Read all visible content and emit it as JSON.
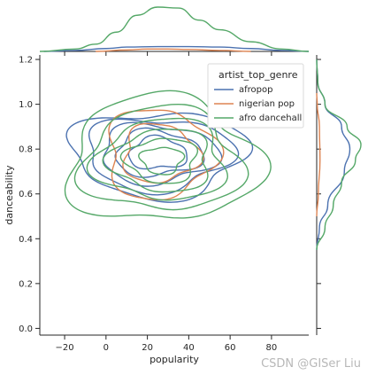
{
  "chart_data": {
    "type": "kde-joint",
    "xlabel": "popularity",
    "ylabel": "danceability",
    "xlim": [
      -32,
      98
    ],
    "ylim": [
      -0.03,
      1.22
    ],
    "xticks": [
      -20,
      0,
      20,
      40,
      60,
      80
    ],
    "yticks": [
      0.0,
      0.2,
      0.4,
      0.6,
      0.8,
      1.0,
      1.2
    ],
    "legend": {
      "title": "artist_top_genre",
      "position": "top-right"
    },
    "series": [
      {
        "name": "afropop",
        "color": "#4c72b0",
        "center": [
          25,
          0.78
        ],
        "levels": [
          {
            "rx": 42,
            "ry": 0.19
          },
          {
            "rx": 35,
            "ry": 0.16
          },
          {
            "rx": 28,
            "ry": 0.13
          },
          {
            "rx": 21,
            "ry": 0.1
          },
          {
            "rx": 14,
            "ry": 0.07
          }
        ],
        "marginal_x": [
          [
            -30,
            0
          ],
          [
            -15,
            0.02
          ],
          [
            0,
            0.06
          ],
          [
            10,
            0.09
          ],
          [
            25,
            0.1
          ],
          [
            40,
            0.1
          ],
          [
            55,
            0.09
          ],
          [
            70,
            0.06
          ],
          [
            85,
            0.02
          ],
          [
            98,
            0
          ]
        ],
        "marginal_y": [
          [
            0.35,
            0
          ],
          [
            0.45,
            0.05
          ],
          [
            0.55,
            0.2
          ],
          [
            0.7,
            0.5
          ],
          [
            0.8,
            0.6
          ],
          [
            0.9,
            0.45
          ],
          [
            1.0,
            0.15
          ],
          [
            1.1,
            0.02
          ],
          [
            1.2,
            0
          ]
        ]
      },
      {
        "name": "nigerian pop",
        "color": "#dd8452",
        "center": [
          26,
          0.78
        ],
        "levels": [
          {
            "rx": 26,
            "ry": 0.2
          },
          {
            "rx": 18,
            "ry": 0.13
          }
        ],
        "marginal_x": [
          [
            -5,
            0
          ],
          [
            10,
            0.03
          ],
          [
            20,
            0.05
          ],
          [
            30,
            0.05
          ],
          [
            40,
            0.04
          ],
          [
            55,
            0.02
          ],
          [
            70,
            0
          ]
        ],
        "marginal_y": [
          [
            0.5,
            0
          ],
          [
            0.6,
            0.03
          ],
          [
            0.75,
            0.06
          ],
          [
            0.9,
            0.05
          ],
          [
            1.0,
            0.01
          ],
          [
            1.05,
            0
          ]
        ]
      },
      {
        "name": "afro dancehall",
        "color": "#55a868",
        "center": [
          27,
          0.75
        ],
        "levels": [
          {
            "rx": 46,
            "ry": 0.28
          },
          {
            "rx": 38,
            "ry": 0.23
          },
          {
            "rx": 31,
            "ry": 0.18
          },
          {
            "rx": 24,
            "ry": 0.14
          },
          {
            "rx": 17,
            "ry": 0.1
          },
          {
            "rx": 10,
            "ry": 0.06
          }
        ],
        "marginal_x": [
          [
            -35,
            0
          ],
          [
            -15,
            0.05
          ],
          [
            -5,
            0.15
          ],
          [
            5,
            0.4
          ],
          [
            15,
            0.75
          ],
          [
            25,
            0.92
          ],
          [
            35,
            0.9
          ],
          [
            45,
            0.65
          ],
          [
            55,
            0.45
          ],
          [
            70,
            0.2
          ],
          [
            85,
            0.05
          ],
          [
            98,
            0
          ]
        ],
        "marginal_y": [
          [
            0.35,
            0
          ],
          [
            0.45,
            0.15
          ],
          [
            0.55,
            0.3
          ],
          [
            0.65,
            0.45
          ],
          [
            0.75,
            0.7
          ],
          [
            0.82,
            0.8
          ],
          [
            0.9,
            0.55
          ],
          [
            1.0,
            0.15
          ],
          [
            1.1,
            0.02
          ],
          [
            1.2,
            0
          ]
        ]
      }
    ]
  },
  "watermark": "CSDN @GISer Liu"
}
